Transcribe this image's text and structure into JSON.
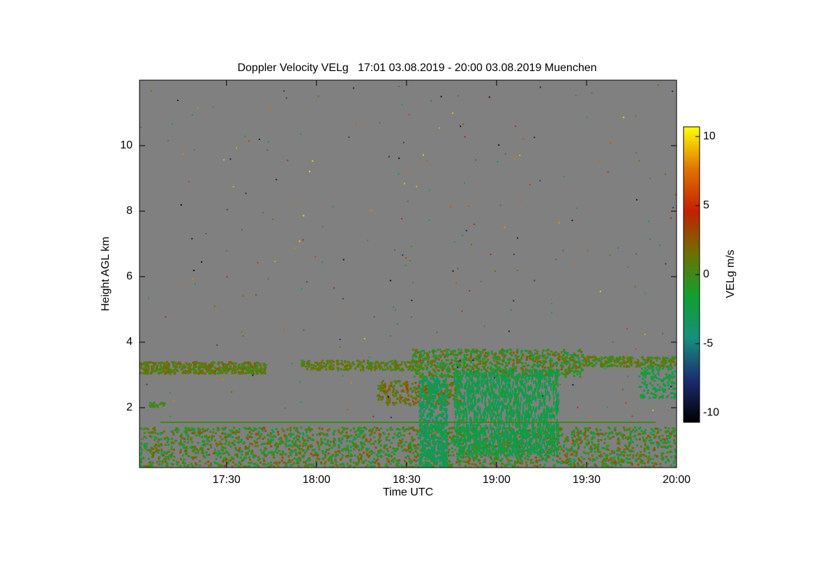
{
  "chart_data": {
    "type": "heatmap",
    "title": "Doppler Velocity VELg   17:01 03.08.2019 - 20:00 03.08.2019 Muenchen",
    "x_label": "Time UTC",
    "y_label": "Height AGL km",
    "colorbar_label": "VELg m/s",
    "xlim": [
      1021,
      1200
    ],
    "xticks": [
      {
        "value": 1050,
        "label": "17:30"
      },
      {
        "value": 1080,
        "label": "18:00"
      },
      {
        "value": 1110,
        "label": "18:30"
      },
      {
        "value": 1140,
        "label": "19:00"
      },
      {
        "value": 1170,
        "label": "19:30"
      },
      {
        "value": 1200,
        "label": "20:00"
      }
    ],
    "ylim": [
      0.17,
      12
    ],
    "yticks": [
      2,
      4,
      6,
      8,
      10
    ],
    "clim": [
      -10.7,
      10.7
    ],
    "cticks": [
      -10,
      -5,
      0,
      5,
      10
    ],
    "colormap": [
      "#000000",
      "#1c2c70",
      "#16907a",
      "#10a030",
      "#6e7000",
      "#c42000",
      "#e07400",
      "#ffff00"
    ],
    "background_color": "#808080"
  }
}
